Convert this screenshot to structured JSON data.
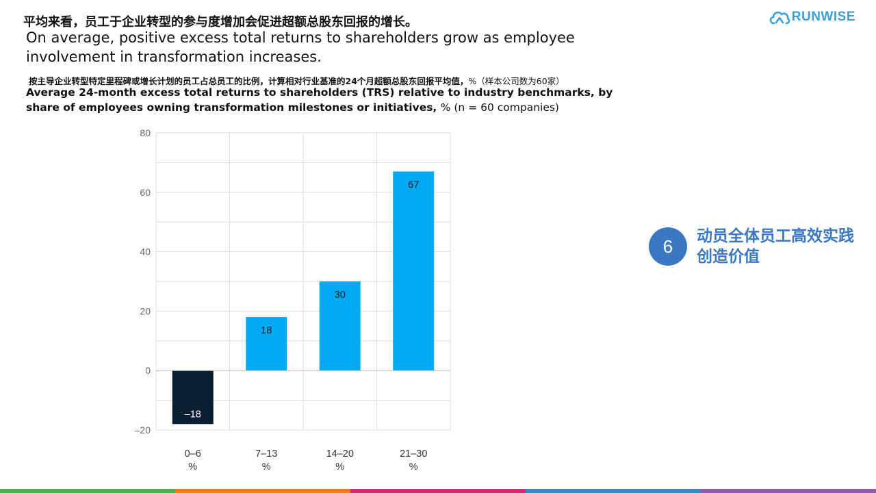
{
  "header": {
    "title_zh": "平均来看，员工于企业转型的参与度增加会促进超额总股东回报的增长。",
    "title_en": "On average, positive excess total returns to shareholders grow as employee involvement in transformation increases.",
    "subtitle_zh": "按主导企业转型特定里程碑或增长计划的员工占总员工的比例，计算相对行业基准的24个月超额总股东回报平均值，",
    "subtitle_zh_note": "%（样本公司数为60家）",
    "subtitle_en": "Average 24-month excess total returns to shareholders (TRS) relative to industry benchmarks, by share of employees owning transformation milestones or initiatives,",
    "subtitle_en_note": "% (n = 60 companies)"
  },
  "logo": {
    "text": "RUNWISE"
  },
  "chart_data": {
    "type": "bar",
    "categories": [
      [
        "0–6",
        "%"
      ],
      [
        "7–13",
        "%"
      ],
      [
        "14–20",
        "%"
      ],
      [
        "21–30",
        "%"
      ]
    ],
    "values": [
      -18,
      18,
      30,
      67
    ],
    "value_labels": [
      "–18",
      "18",
      "30",
      "67"
    ],
    "bar_colors": [
      "#0b1f33",
      "#00a9f4",
      "#00a9f4",
      "#00a9f4"
    ],
    "label_colors": [
      "#ffffff",
      "#1a1a1a",
      "#1a1a1a",
      "#1a1a1a"
    ],
    "ylim": [
      -20,
      80
    ],
    "yticks": [
      -20,
      0,
      20,
      40,
      60,
      80
    ],
    "ytick_labels": [
      "–20",
      "0",
      "20",
      "40",
      "60",
      "80"
    ],
    "grid": true,
    "title": "",
    "xlabel": "",
    "ylabel": ""
  },
  "side": {
    "number": "6",
    "text": "动员全体员工高效实践创造价值",
    "color": "#3a78c2"
  },
  "footer_colors": [
    "#4caf50",
    "#ef7d1a",
    "#e0266e",
    "#3f86c8",
    "#8e5bb0"
  ]
}
